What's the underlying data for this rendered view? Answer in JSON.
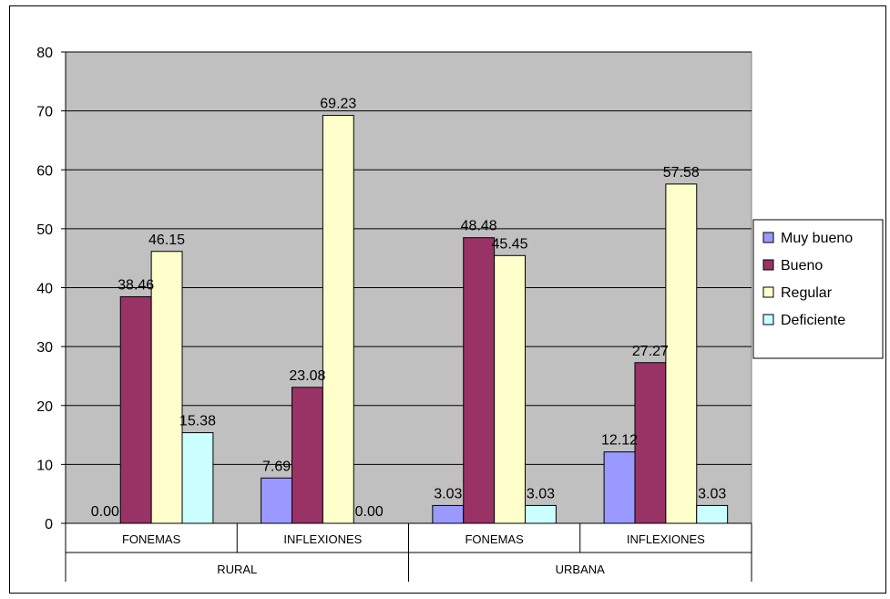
{
  "chart_data": {
    "type": "bar",
    "groups": [
      {
        "label": "RURAL",
        "categories": [
          "FONEMAS",
          "INFLEXIONES"
        ]
      },
      {
        "label": "URBANA",
        "categories": [
          "FONEMAS",
          "INFLEXIONES"
        ]
      }
    ],
    "categories": [
      "FONEMAS",
      "INFLEXIONES",
      "FONEMAS",
      "INFLEXIONES"
    ],
    "series": [
      {
        "name": "Muy bueno",
        "color": "#9999ff",
        "values": [
          0.0,
          7.69,
          3.03,
          12.12
        ],
        "labels": [
          "0.00",
          "7.69",
          "3.03",
          "12.12"
        ]
      },
      {
        "name": "Bueno",
        "color": "#993366",
        "values": [
          38.46,
          23.08,
          48.48,
          27.27
        ],
        "labels": [
          "38.46",
          "23.08",
          "48.48",
          "27.27"
        ]
      },
      {
        "name": "Regular",
        "color": "#ffffcc",
        "values": [
          46.15,
          69.23,
          45.45,
          57.58
        ],
        "labels": [
          "46.15",
          "69.23",
          "45.45",
          "57.58"
        ]
      },
      {
        "name": "Deficiente",
        "color": "#ccffff",
        "values": [
          15.38,
          0.0,
          3.03,
          3.03
        ],
        "labels": [
          "15.38",
          "0.00",
          "3.03",
          "3.03"
        ]
      }
    ],
    "ylim": [
      0,
      80
    ],
    "yticks": [
      "0",
      "10",
      "20",
      "30",
      "40",
      "50",
      "60",
      "70",
      "80"
    ],
    "title": "",
    "xlabel": "",
    "ylabel": "",
    "grid": true,
    "plot_background": "#c0c0c0",
    "legend_position": "right"
  }
}
